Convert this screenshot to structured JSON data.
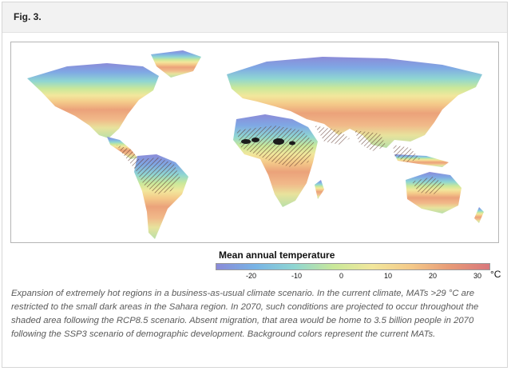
{
  "figure": {
    "label": "Fig. 3."
  },
  "legend": {
    "title": "Mean annual temperature",
    "ticks": [
      "-20",
      "-10",
      "0",
      "10",
      "20",
      "30"
    ],
    "unit": "°C",
    "colors": [
      "#8b8bd8",
      "#78b4e6",
      "#8fd6d2",
      "#c9e89a",
      "#f2e79c",
      "#f4c989",
      "#e79a77",
      "#d9777c"
    ]
  },
  "caption": "Expansion of extremely hot regions in a business-as-usual climate scenario. In the current climate, MATs >29 °C are restricted to the small dark areas in the Sahara region. In 2070, such conditions are projected to occur throughout the shaded area following the RCP8.5 scenario. Absent migration, that area would be home to 3.5 billion people in 2070 following the SSP3 scenario of demographic development. Background colors represent the current MATs."
}
